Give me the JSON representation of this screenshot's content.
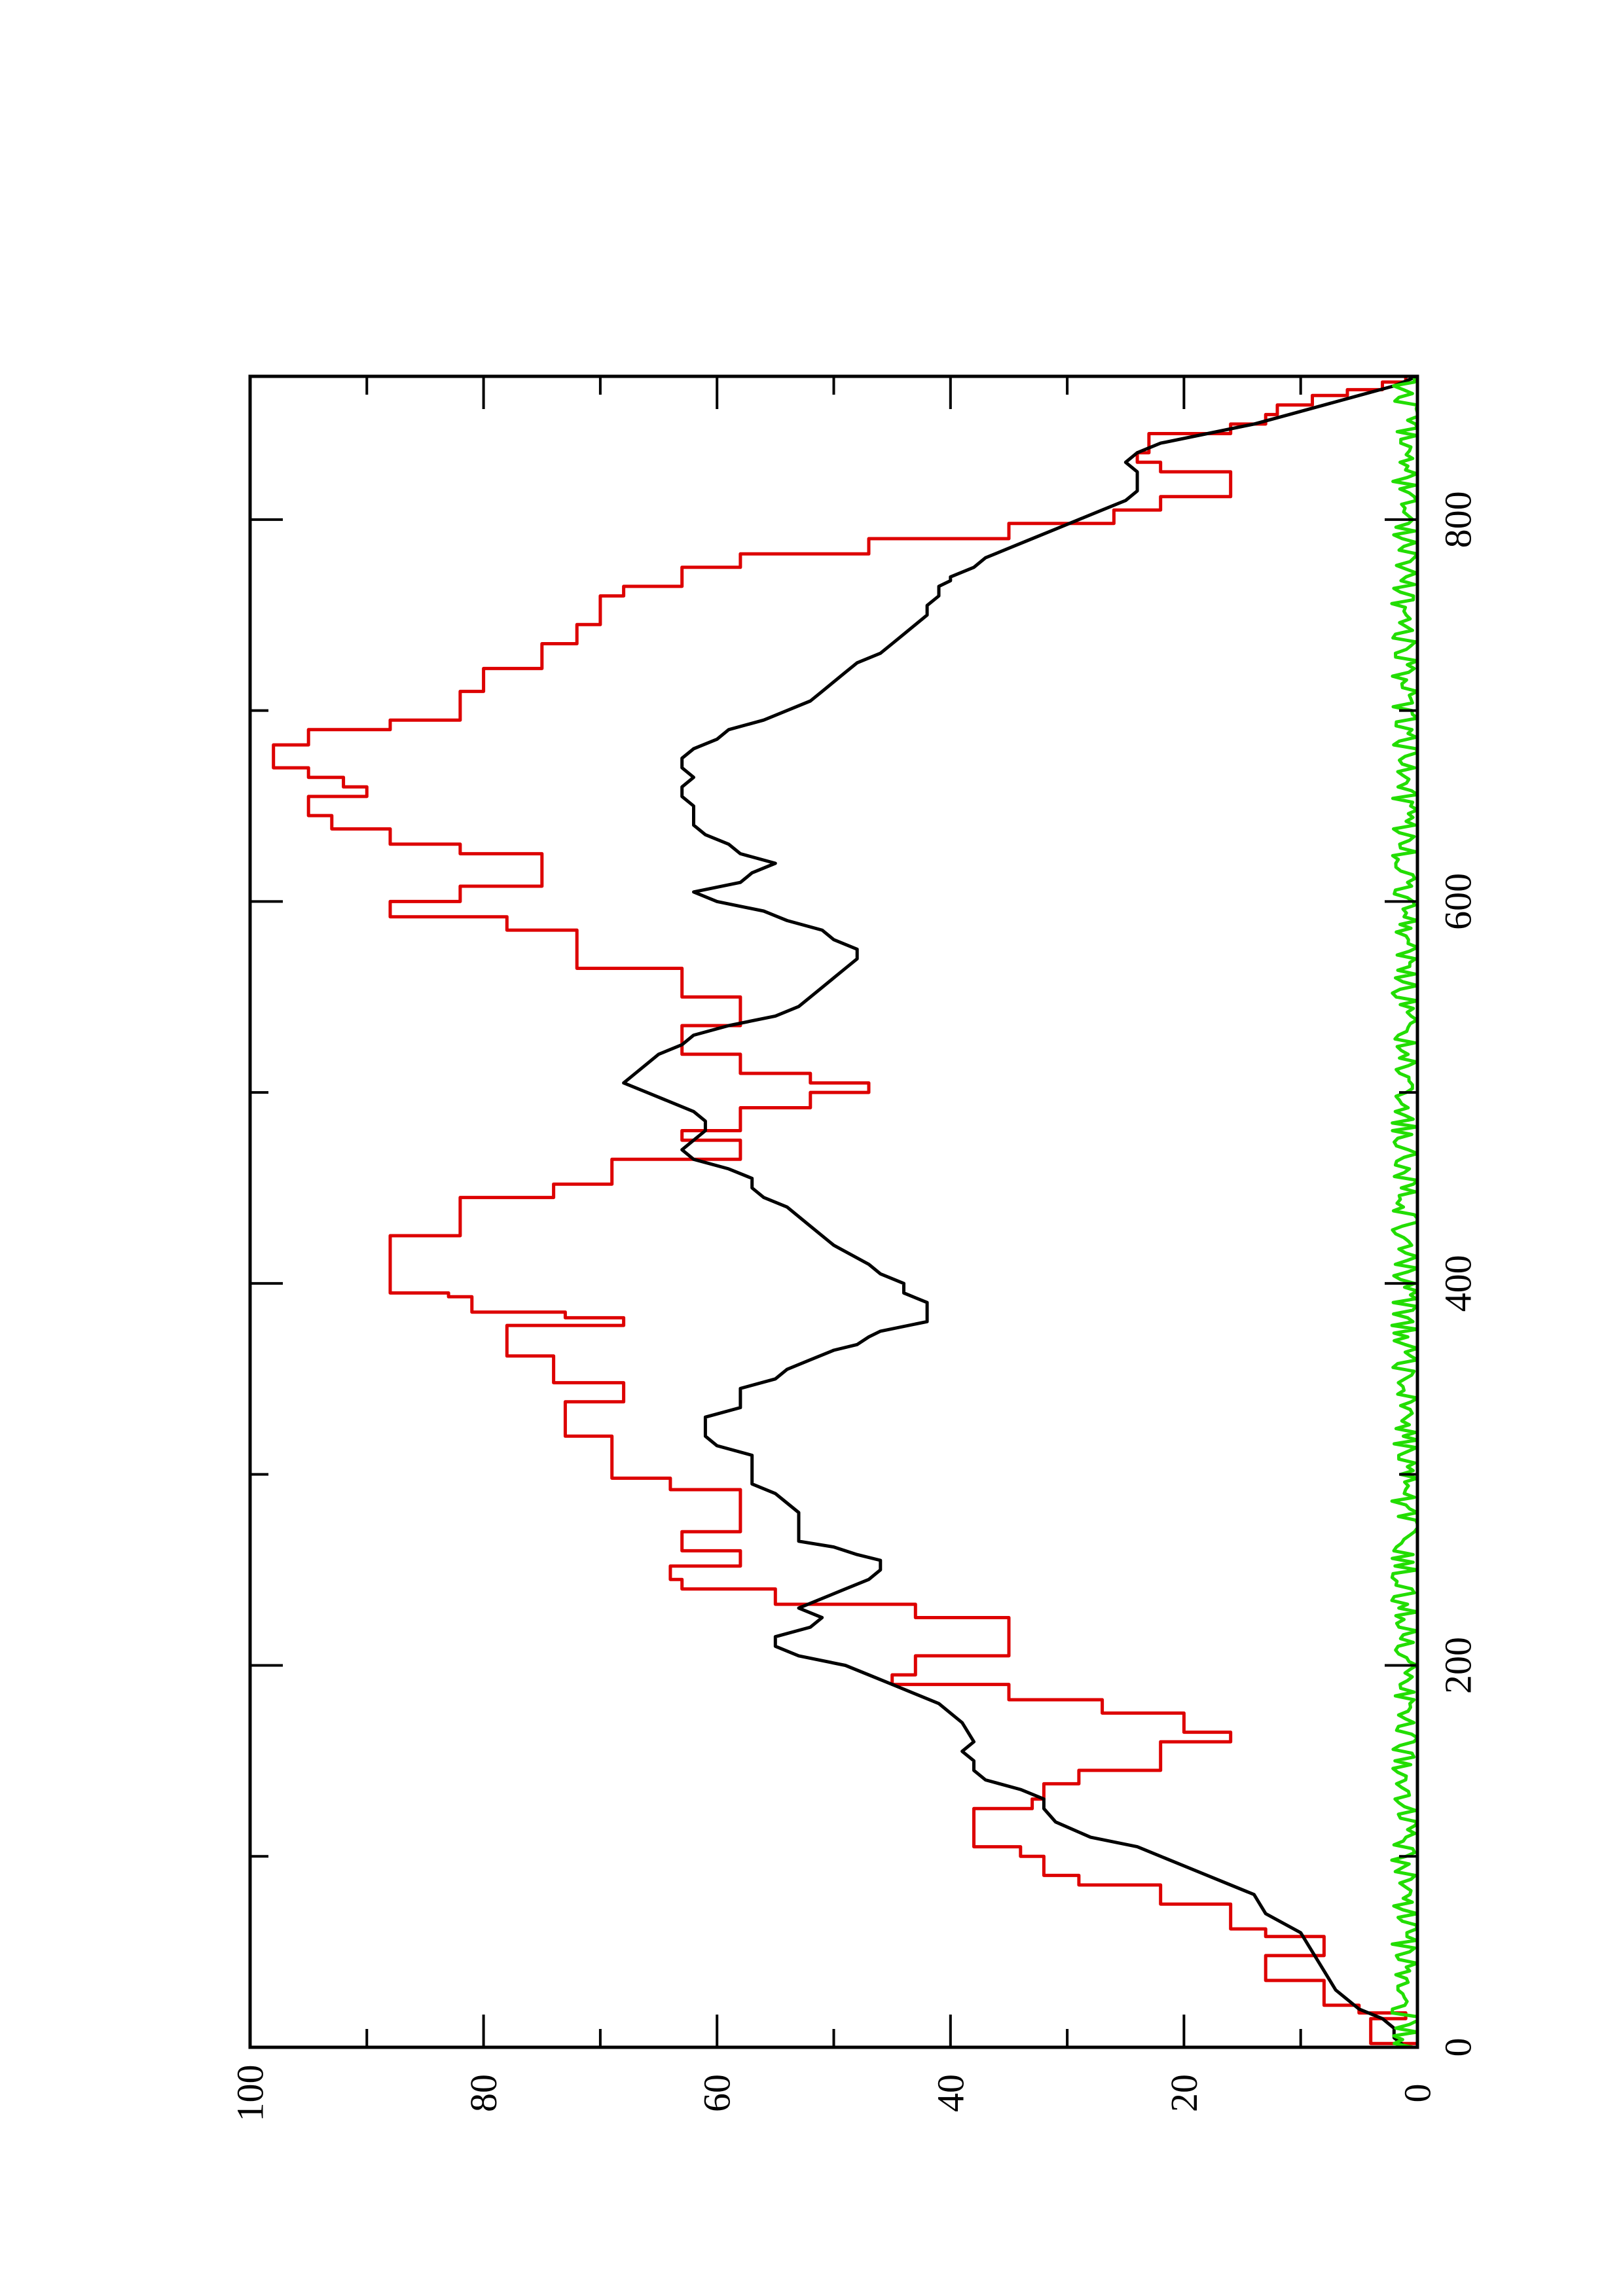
{
  "chart_data": {
    "type": "line",
    "title": "",
    "xlabel": "",
    "ylabel": "",
    "orientation": "rotated 90° counter-clockwise (landscape plot on portrait page)",
    "xlim": [
      0,
      875
    ],
    "ylim": [
      0,
      100
    ],
    "x_ticks": [
      0,
      200,
      400,
      600,
      800
    ],
    "x_minor_ticks": [
      100,
      300,
      500,
      700
    ],
    "y_ticks": [
      0,
      20,
      40,
      60,
      80,
      100
    ],
    "y_minor_ticks": [
      10,
      30,
      50,
      70,
      90
    ],
    "grid": false,
    "legend": "none",
    "series": [
      {
        "color": "#dd0000",
        "style": "step",
        "points": [
          [
            0,
            0
          ],
          [
            2,
            4
          ],
          [
            12,
            4
          ],
          [
            15,
            1
          ],
          [
            18,
            5
          ],
          [
            22,
            8
          ],
          [
            28,
            8
          ],
          [
            35,
            13
          ],
          [
            45,
            13
          ],
          [
            48,
            8
          ],
          [
            55,
            8
          ],
          [
            58,
            13
          ],
          [
            62,
            16
          ],
          [
            70,
            16
          ],
          [
            75,
            22
          ],
          [
            80,
            22
          ],
          [
            85,
            29
          ],
          [
            90,
            32
          ],
          [
            100,
            34
          ],
          [
            105,
            38
          ],
          [
            120,
            38
          ],
          [
            125,
            33
          ],
          [
            130,
            32
          ],
          [
            138,
            29
          ],
          [
            145,
            22
          ],
          [
            160,
            16
          ],
          [
            165,
            20
          ],
          [
            175,
            27
          ],
          [
            182,
            35
          ],
          [
            190,
            45
          ],
          [
            195,
            43
          ],
          [
            205,
            35
          ],
          [
            215,
            35
          ],
          [
            225,
            43
          ],
          [
            232,
            55
          ],
          [
            240,
            63
          ],
          [
            245,
            64
          ],
          [
            252,
            58
          ],
          [
            258,
            58
          ],
          [
            260,
            63
          ],
          [
            268,
            63
          ],
          [
            270,
            58
          ],
          [
            288,
            58
          ],
          [
            292,
            64
          ],
          [
            298,
            69
          ],
          [
            315,
            69
          ],
          [
            320,
            73
          ],
          [
            335,
            73
          ],
          [
            338,
            68
          ],
          [
            345,
            68
          ],
          [
            348,
            74
          ],
          [
            360,
            74
          ],
          [
            362,
            78
          ],
          [
            373,
            78
          ],
          [
            378,
            68
          ],
          [
            382,
            73
          ],
          [
            385,
            81
          ],
          [
            393,
            83
          ],
          [
            395,
            88
          ],
          [
            420,
            88
          ],
          [
            425,
            82
          ],
          [
            445,
            74
          ],
          [
            452,
            69
          ],
          [
            465,
            58
          ],
          [
            470,
            58
          ],
          [
            475,
            63
          ],
          [
            480,
            58
          ],
          [
            492,
            52
          ],
          [
            500,
            47
          ],
          [
            505,
            52
          ],
          [
            510,
            58
          ],
          [
            515,
            58
          ],
          [
            520,
            63
          ],
          [
            530,
            63
          ],
          [
            535,
            58
          ],
          [
            545,
            58
          ],
          [
            550,
            63
          ],
          [
            560,
            63
          ],
          [
            565,
            72
          ],
          [
            580,
            72
          ],
          [
            585,
            78
          ],
          [
            592,
            88
          ],
          [
            600,
            82
          ],
          [
            608,
            75
          ],
          [
            620,
            75
          ],
          [
            625,
            82
          ],
          [
            630,
            88
          ],
          [
            638,
            93
          ],
          [
            645,
            95
          ],
          [
            650,
            95
          ],
          [
            655,
            90
          ],
          [
            660,
            92
          ],
          [
            665,
            95
          ],
          [
            670,
            98
          ],
          [
            678,
            98
          ],
          [
            682,
            95
          ],
          [
            690,
            88
          ],
          [
            695,
            82
          ],
          [
            710,
            80
          ],
          [
            722,
            75
          ],
          [
            730,
            75
          ],
          [
            735,
            72
          ],
          [
            745,
            70
          ],
          [
            760,
            68
          ],
          [
            765,
            63
          ],
          [
            770,
            63
          ],
          [
            775,
            58
          ],
          [
            782,
            47
          ],
          [
            790,
            35
          ],
          [
            798,
            26
          ],
          [
            805,
            22
          ],
          [
            812,
            16
          ],
          [
            818,
            16
          ],
          [
            825,
            22
          ],
          [
            830,
            24
          ],
          [
            835,
            23
          ],
          [
            845,
            16
          ],
          [
            850,
            13
          ],
          [
            855,
            12
          ],
          [
            860,
            9
          ],
          [
            865,
            6
          ],
          [
            868,
            3
          ],
          [
            872,
            1
          ],
          [
            875,
            0
          ]
        ]
      },
      {
        "color": "#000000",
        "style": "line",
        "points": [
          [
            0,
            1
          ],
          [
            5,
            2
          ],
          [
            10,
            2
          ],
          [
            15,
            3
          ],
          [
            20,
            5
          ],
          [
            30,
            7
          ],
          [
            40,
            8
          ],
          [
            50,
            9
          ],
          [
            60,
            10
          ],
          [
            70,
            13
          ],
          [
            80,
            14
          ],
          [
            85,
            16
          ],
          [
            90,
            18
          ],
          [
            95,
            20
          ],
          [
            100,
            22
          ],
          [
            105,
            24
          ],
          [
            110,
            28
          ],
          [
            118,
            31
          ],
          [
            125,
            32
          ],
          [
            130,
            32
          ],
          [
            135,
            34
          ],
          [
            140,
            37
          ],
          [
            145,
            38
          ],
          [
            150,
            38
          ],
          [
            155,
            39
          ],
          [
            160,
            38
          ],
          [
            170,
            39
          ],
          [
            175,
            40
          ],
          [
            180,
            41
          ],
          [
            185,
            43
          ],
          [
            190,
            45
          ],
          [
            195,
            47
          ],
          [
            200,
            49
          ],
          [
            205,
            53
          ],
          [
            210,
            55
          ],
          [
            215,
            55
          ],
          [
            220,
            52
          ],
          [
            225,
            51
          ],
          [
            230,
            53
          ],
          [
            235,
            51
          ],
          [
            240,
            49
          ],
          [
            245,
            47
          ],
          [
            250,
            46
          ],
          [
            255,
            46
          ],
          [
            258,
            48
          ],
          [
            262,
            50
          ],
          [
            265,
            53
          ],
          [
            270,
            53
          ],
          [
            275,
            53
          ],
          [
            280,
            53
          ],
          [
            285,
            54
          ],
          [
            290,
            55
          ],
          [
            295,
            57
          ],
          [
            300,
            57
          ],
          [
            305,
            57
          ],
          [
            310,
            57
          ],
          [
            315,
            60
          ],
          [
            320,
            61
          ],
          [
            325,
            61
          ],
          [
            330,
            61
          ],
          [
            335,
            58
          ],
          [
            340,
            58
          ],
          [
            345,
            58
          ],
          [
            350,
            55
          ],
          [
            355,
            54
          ],
          [
            360,
            52
          ],
          [
            365,
            50
          ],
          [
            368,
            48
          ],
          [
            372,
            47
          ],
          [
            375,
            46
          ],
          [
            380,
            42
          ],
          [
            385,
            42
          ],
          [
            390,
            42
          ],
          [
            395,
            44
          ],
          [
            400,
            44
          ],
          [
            405,
            46
          ],
          [
            410,
            47
          ],
          [
            420,
            50
          ],
          [
            430,
            52
          ],
          [
            440,
            54
          ],
          [
            445,
            56
          ],
          [
            450,
            57
          ],
          [
            455,
            57
          ],
          [
            460,
            59
          ],
          [
            465,
            62
          ],
          [
            470,
            63
          ],
          [
            475,
            62
          ],
          [
            480,
            61
          ],
          [
            485,
            61
          ],
          [
            490,
            62
          ],
          [
            495,
            64
          ],
          [
            500,
            66
          ],
          [
            505,
            68
          ],
          [
            510,
            67
          ],
          [
            515,
            66
          ],
          [
            520,
            65
          ],
          [
            525,
            63
          ],
          [
            530,
            62
          ],
          [
            535,
            59
          ],
          [
            540,
            55
          ],
          [
            545,
            53
          ],
          [
            550,
            52
          ],
          [
            555,
            51
          ],
          [
            560,
            50
          ],
          [
            565,
            49
          ],
          [
            570,
            48
          ],
          [
            575,
            48
          ],
          [
            580,
            50
          ],
          [
            585,
            51
          ],
          [
            590,
            54
          ],
          [
            595,
            56
          ],
          [
            600,
            60
          ],
          [
            605,
            62
          ],
          [
            610,
            58
          ],
          [
            615,
            57
          ],
          [
            620,
            55
          ],
          [
            625,
            58
          ],
          [
            630,
            59
          ],
          [
            635,
            61
          ],
          [
            640,
            62
          ],
          [
            645,
            62
          ],
          [
            650,
            62
          ],
          [
            655,
            63
          ],
          [
            660,
            63
          ],
          [
            665,
            62
          ],
          [
            670,
            63
          ],
          [
            675,
            63
          ],
          [
            680,
            62
          ],
          [
            685,
            60
          ],
          [
            690,
            59
          ],
          [
            695,
            56
          ],
          [
            700,
            54
          ],
          [
            705,
            52
          ],
          [
            710,
            51
          ],
          [
            715,
            50
          ],
          [
            720,
            49
          ],
          [
            725,
            48
          ],
          [
            730,
            46
          ],
          [
            735,
            45
          ],
          [
            740,
            44
          ],
          [
            745,
            43
          ],
          [
            750,
            42
          ],
          [
            755,
            42
          ],
          [
            760,
            41
          ],
          [
            765,
            41
          ],
          [
            768,
            40
          ],
          [
            770,
            40
          ],
          [
            775,
            38
          ],
          [
            780,
            37
          ],
          [
            785,
            35
          ],
          [
            790,
            33
          ],
          [
            795,
            31
          ],
          [
            800,
            29
          ],
          [
            805,
            27
          ],
          [
            810,
            25
          ],
          [
            815,
            24
          ],
          [
            820,
            24
          ],
          [
            825,
            24
          ],
          [
            830,
            25
          ],
          [
            835,
            24
          ],
          [
            840,
            22
          ],
          [
            845,
            18
          ],
          [
            850,
            14
          ],
          [
            855,
            11
          ],
          [
            860,
            8
          ],
          [
            865,
            5
          ],
          [
            870,
            2
          ],
          [
            875,
            0
          ]
        ]
      },
      {
        "color": "#22dd00",
        "style": "line",
        "noise_seed": 7,
        "noise_center": 1.0,
        "noise_amplitude": 1.2,
        "x_range": [
          0,
          875
        ],
        "x_step": 2
      }
    ]
  }
}
